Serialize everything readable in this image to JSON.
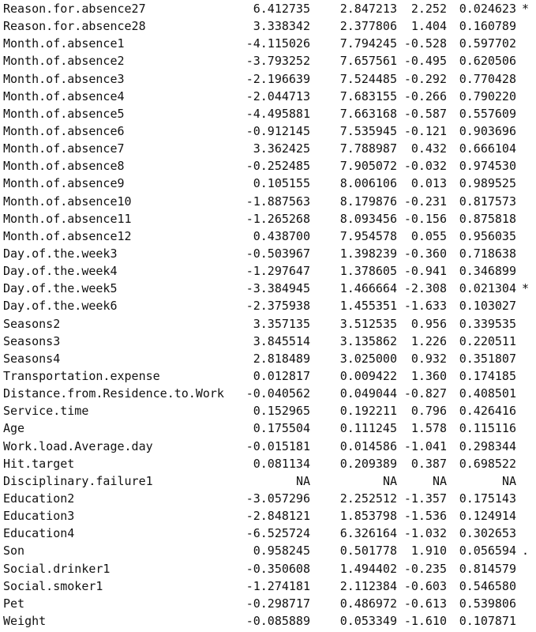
{
  "rows": [
    {
      "name": "Reason.for.absence27",
      "estimate": "6.412735",
      "std_error": "2.847213",
      "t_value": "2.252",
      "p_value": "0.024623",
      "signif": "*"
    },
    {
      "name": "Reason.for.absence28",
      "estimate": "3.338342",
      "std_error": "2.377806",
      "t_value": "1.404",
      "p_value": "0.160789",
      "signif": ""
    },
    {
      "name": "Month.of.absence1",
      "estimate": "-4.115026",
      "std_error": "7.794245",
      "t_value": "-0.528",
      "p_value": "0.597702",
      "signif": ""
    },
    {
      "name": "Month.of.absence2",
      "estimate": "-3.793252",
      "std_error": "7.657561",
      "t_value": "-0.495",
      "p_value": "0.620506",
      "signif": ""
    },
    {
      "name": "Month.of.absence3",
      "estimate": "-2.196639",
      "std_error": "7.524485",
      "t_value": "-0.292",
      "p_value": "0.770428",
      "signif": ""
    },
    {
      "name": "Month.of.absence4",
      "estimate": "-2.044713",
      "std_error": "7.683155",
      "t_value": "-0.266",
      "p_value": "0.790220",
      "signif": ""
    },
    {
      "name": "Month.of.absence5",
      "estimate": "-4.495881",
      "std_error": "7.663168",
      "t_value": "-0.587",
      "p_value": "0.557609",
      "signif": ""
    },
    {
      "name": "Month.of.absence6",
      "estimate": "-0.912145",
      "std_error": "7.535945",
      "t_value": "-0.121",
      "p_value": "0.903696",
      "signif": ""
    },
    {
      "name": "Month.of.absence7",
      "estimate": "3.362425",
      "std_error": "7.788987",
      "t_value": "0.432",
      "p_value": "0.666104",
      "signif": ""
    },
    {
      "name": "Month.of.absence8",
      "estimate": "-0.252485",
      "std_error": "7.905072",
      "t_value": "-0.032",
      "p_value": "0.974530",
      "signif": ""
    },
    {
      "name": "Month.of.absence9",
      "estimate": "0.105155",
      "std_error": "8.006106",
      "t_value": "0.013",
      "p_value": "0.989525",
      "signif": ""
    },
    {
      "name": "Month.of.absence10",
      "estimate": "-1.887563",
      "std_error": "8.179876",
      "t_value": "-0.231",
      "p_value": "0.817573",
      "signif": ""
    },
    {
      "name": "Month.of.absence11",
      "estimate": "-1.265268",
      "std_error": "8.093456",
      "t_value": "-0.156",
      "p_value": "0.875818",
      "signif": ""
    },
    {
      "name": "Month.of.absence12",
      "estimate": "0.438700",
      "std_error": "7.954578",
      "t_value": "0.055",
      "p_value": "0.956035",
      "signif": ""
    },
    {
      "name": "Day.of.the.week3",
      "estimate": "-0.503967",
      "std_error": "1.398239",
      "t_value": "-0.360",
      "p_value": "0.718638",
      "signif": ""
    },
    {
      "name": "Day.of.the.week4",
      "estimate": "-1.297647",
      "std_error": "1.378605",
      "t_value": "-0.941",
      "p_value": "0.346899",
      "signif": ""
    },
    {
      "name": "Day.of.the.week5",
      "estimate": "-3.384945",
      "std_error": "1.466664",
      "t_value": "-2.308",
      "p_value": "0.021304",
      "signif": "*"
    },
    {
      "name": "Day.of.the.week6",
      "estimate": "-2.375938",
      "std_error": "1.455351",
      "t_value": "-1.633",
      "p_value": "0.103027",
      "signif": ""
    },
    {
      "name": "Seasons2",
      "estimate": "3.357135",
      "std_error": "3.512535",
      "t_value": "0.956",
      "p_value": "0.339535",
      "signif": ""
    },
    {
      "name": "Seasons3",
      "estimate": "3.845514",
      "std_error": "3.135862",
      "t_value": "1.226",
      "p_value": "0.220511",
      "signif": ""
    },
    {
      "name": "Seasons4",
      "estimate": "2.818489",
      "std_error": "3.025000",
      "t_value": "0.932",
      "p_value": "0.351807",
      "signif": ""
    },
    {
      "name": "Transportation.expense",
      "estimate": "0.012817",
      "std_error": "0.009422",
      "t_value": "1.360",
      "p_value": "0.174185",
      "signif": ""
    },
    {
      "name": "Distance.from.Residence.to.Work",
      "estimate": "-0.040562",
      "std_error": "0.049044",
      "t_value": "-0.827",
      "p_value": "0.408501",
      "signif": ""
    },
    {
      "name": "Service.time",
      "estimate": "0.152965",
      "std_error": "0.192211",
      "t_value": "0.796",
      "p_value": "0.426416",
      "signif": ""
    },
    {
      "name": "Age",
      "estimate": "0.175504",
      "std_error": "0.111245",
      "t_value": "1.578",
      "p_value": "0.115116",
      "signif": ""
    },
    {
      "name": "Work.load.Average.day",
      "estimate": "-0.015181",
      "std_error": "0.014586",
      "t_value": "-1.041",
      "p_value": "0.298344",
      "signif": ""
    },
    {
      "name": "Hit.target",
      "estimate": "0.081134",
      "std_error": "0.209389",
      "t_value": "0.387",
      "p_value": "0.698522",
      "signif": ""
    },
    {
      "name": "Disciplinary.failure1",
      "estimate": "NA",
      "std_error": "NA",
      "t_value": "NA",
      "p_value": "NA",
      "signif": ""
    },
    {
      "name": "Education2",
      "estimate": "-3.057296",
      "std_error": "2.252512",
      "t_value": "-1.357",
      "p_value": "0.175143",
      "signif": ""
    },
    {
      "name": "Education3",
      "estimate": "-2.848121",
      "std_error": "1.853798",
      "t_value": "-1.536",
      "p_value": "0.124914",
      "signif": ""
    },
    {
      "name": "Education4",
      "estimate": "-6.525724",
      "std_error": "6.326164",
      "t_value": "-1.032",
      "p_value": "0.302653",
      "signif": ""
    },
    {
      "name": "Son",
      "estimate": "0.958245",
      "std_error": "0.501778",
      "t_value": "1.910",
      "p_value": "0.056594",
      "signif": "."
    },
    {
      "name": "Social.drinker1",
      "estimate": "-0.350608",
      "std_error": "1.494402",
      "t_value": "-0.235",
      "p_value": "0.814579",
      "signif": ""
    },
    {
      "name": "Social.smoker1",
      "estimate": "-1.274181",
      "std_error": "2.112384",
      "t_value": "-0.603",
      "p_value": "0.546580",
      "signif": ""
    },
    {
      "name": "Pet",
      "estimate": "-0.298717",
      "std_error": "0.486972",
      "t_value": "-0.613",
      "p_value": "0.539806",
      "signif": ""
    },
    {
      "name": "Weight",
      "estimate": "-0.085889",
      "std_error": "0.053349",
      "t_value": "-1.610",
      "p_value": "0.107871",
      "signif": ""
    }
  ]
}
